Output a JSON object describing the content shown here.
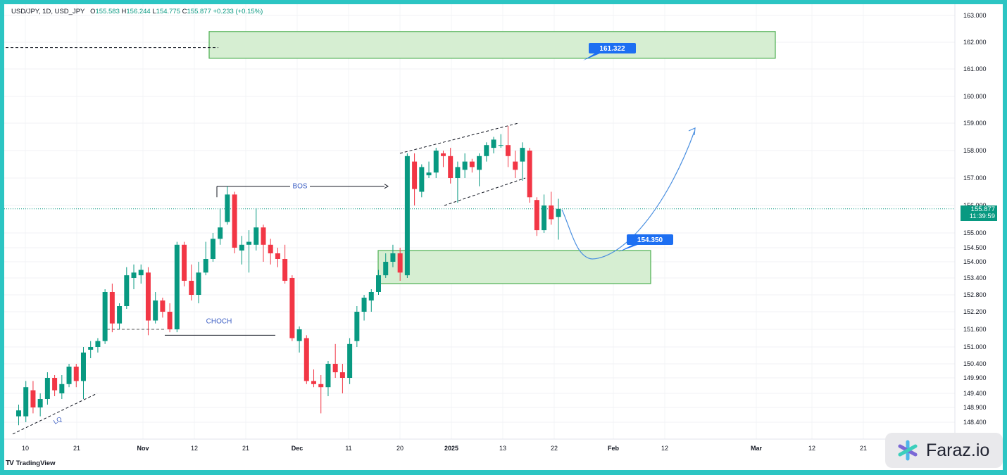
{
  "header": {
    "symbol": "USD/JPY, 1D, USD_JPY",
    "open_label": "O",
    "open": "155.583",
    "high_label": "H",
    "high": "156.244",
    "low_label": "L",
    "low": "154.775",
    "close_label": "C",
    "close": "155.877",
    "change": "+0.233 (+0.15%)"
  },
  "brand": {
    "logo": "TV",
    "name": "TradingView",
    "watermark": "Faraz.io"
  },
  "price_tag": {
    "price": "155.877",
    "countdown": "11:39:59"
  },
  "colors": {
    "up": "#089981",
    "down": "#f23645",
    "zone_fill": "#d6eed2",
    "zone_stroke": "#4caf50",
    "label_bg": "#1d6ff2",
    "projection": "#4a8fe0",
    "frame": "#2cc5c3"
  },
  "annotations": {
    "bos": "BOS",
    "choch": "CHOCH",
    "lq": "LQ",
    "target_label": "161.322",
    "entry_label": "154.350"
  },
  "chart_data": {
    "type": "candlestick",
    "title": "USD/JPY, 1D, USD_JPY",
    "x_tick_labels": [
      "10",
      "21",
      "Nov",
      "12",
      "21",
      "Dec",
      "11",
      "20",
      "2025",
      "13",
      "22",
      "Feb",
      "12",
      "Mar",
      "12",
      "21"
    ],
    "y_tick_labels": [
      "163.000",
      "162.000",
      "161.000",
      "160.000",
      "159.000",
      "158.000",
      "157.000",
      "156.000",
      "155.000",
      "154.500",
      "154.000",
      "153.400",
      "152.800",
      "152.200",
      "151.600",
      "151.000",
      "150.400",
      "149.900",
      "149.400",
      "148.900",
      "148.400"
    ],
    "price_scale": "nonlinear (as labelled on the right axis)",
    "series": [
      {
        "name": "USD/JPY",
        "candles": [
          {
            "o": 148.6,
            "h": 149.0,
            "l": 148.3,
            "c": 148.8
          },
          {
            "o": 148.6,
            "h": 149.8,
            "l": 148.4,
            "c": 149.6
          },
          {
            "o": 149.5,
            "h": 149.8,
            "l": 148.7,
            "c": 148.9
          },
          {
            "o": 148.9,
            "h": 149.4,
            "l": 148.6,
            "c": 149.2
          },
          {
            "o": 149.2,
            "h": 150.1,
            "l": 149.0,
            "c": 149.9
          },
          {
            "o": 149.9,
            "h": 150.0,
            "l": 149.3,
            "c": 149.5
          },
          {
            "o": 149.4,
            "h": 150.0,
            "l": 149.2,
            "c": 149.7
          },
          {
            "o": 149.7,
            "h": 150.4,
            "l": 149.6,
            "c": 150.3
          },
          {
            "o": 150.3,
            "h": 150.4,
            "l": 149.6,
            "c": 149.8
          },
          {
            "o": 149.8,
            "h": 151.0,
            "l": 149.2,
            "c": 150.8
          },
          {
            "o": 150.9,
            "h": 151.2,
            "l": 150.6,
            "c": 151.0
          },
          {
            "o": 151.0,
            "h": 151.3,
            "l": 150.8,
            "c": 151.2
          },
          {
            "o": 151.2,
            "h": 153.0,
            "l": 151.1,
            "c": 152.9
          },
          {
            "o": 152.9,
            "h": 153.2,
            "l": 151.5,
            "c": 151.8
          },
          {
            "o": 151.8,
            "h": 152.5,
            "l": 151.6,
            "c": 152.4
          },
          {
            "o": 152.4,
            "h": 153.8,
            "l": 152.3,
            "c": 153.5
          },
          {
            "o": 153.4,
            "h": 153.9,
            "l": 153.0,
            "c": 153.6
          },
          {
            "o": 153.5,
            "h": 153.9,
            "l": 153.2,
            "c": 153.7
          },
          {
            "o": 153.6,
            "h": 153.8,
            "l": 151.4,
            "c": 151.9
          },
          {
            "o": 151.9,
            "h": 152.9,
            "l": 151.8,
            "c": 152.6
          },
          {
            "o": 152.6,
            "h": 152.7,
            "l": 152.0,
            "c": 152.2
          },
          {
            "o": 152.2,
            "h": 152.5,
            "l": 151.5,
            "c": 151.6
          },
          {
            "o": 151.6,
            "h": 154.7,
            "l": 151.5,
            "c": 154.6
          },
          {
            "o": 154.6,
            "h": 154.7,
            "l": 153.1,
            "c": 153.3
          },
          {
            "o": 153.3,
            "h": 153.9,
            "l": 152.6,
            "c": 152.8
          },
          {
            "o": 152.8,
            "h": 154.0,
            "l": 152.5,
            "c": 153.6
          },
          {
            "o": 153.6,
            "h": 154.7,
            "l": 153.5,
            "c": 154.1
          },
          {
            "o": 154.1,
            "h": 155.0,
            "l": 154.0,
            "c": 154.8
          },
          {
            "o": 154.8,
            "h": 155.9,
            "l": 154.6,
            "c": 155.2
          },
          {
            "o": 155.4,
            "h": 156.7,
            "l": 155.3,
            "c": 156.4
          },
          {
            "o": 156.4,
            "h": 156.5,
            "l": 154.3,
            "c": 154.5
          },
          {
            "o": 154.4,
            "h": 154.9,
            "l": 153.9,
            "c": 154.6
          },
          {
            "o": 154.6,
            "h": 155.1,
            "l": 153.6,
            "c": 154.7
          },
          {
            "o": 154.6,
            "h": 155.9,
            "l": 154.4,
            "c": 155.2
          },
          {
            "o": 155.2,
            "h": 155.3,
            "l": 154.0,
            "c": 154.6
          },
          {
            "o": 154.6,
            "h": 154.8,
            "l": 153.9,
            "c": 154.3
          },
          {
            "o": 154.3,
            "h": 154.5,
            "l": 153.8,
            "c": 154.1
          },
          {
            "o": 154.1,
            "h": 154.6,
            "l": 153.2,
            "c": 153.3
          },
          {
            "o": 153.4,
            "h": 153.5,
            "l": 151.2,
            "c": 151.3
          },
          {
            "o": 151.2,
            "h": 151.7,
            "l": 150.8,
            "c": 151.6
          },
          {
            "o": 151.3,
            "h": 151.4,
            "l": 149.7,
            "c": 149.8
          },
          {
            "o": 149.8,
            "h": 150.2,
            "l": 149.6,
            "c": 149.7
          },
          {
            "o": 149.7,
            "h": 150.0,
            "l": 148.7,
            "c": 149.6
          },
          {
            "o": 149.6,
            "h": 150.5,
            "l": 149.3,
            "c": 150.4
          },
          {
            "o": 150.4,
            "h": 151.1,
            "l": 149.9,
            "c": 150.1
          },
          {
            "o": 150.1,
            "h": 150.4,
            "l": 149.4,
            "c": 149.9
          },
          {
            "o": 149.9,
            "h": 151.3,
            "l": 149.7,
            "c": 151.1
          },
          {
            "o": 151.2,
            "h": 152.4,
            "l": 151.0,
            "c": 152.2
          },
          {
            "o": 152.2,
            "h": 152.8,
            "l": 151.9,
            "c": 152.7
          },
          {
            "o": 152.6,
            "h": 153.0,
            "l": 152.2,
            "c": 152.9
          },
          {
            "o": 152.9,
            "h": 153.7,
            "l": 152.8,
            "c": 153.5
          },
          {
            "o": 153.5,
            "h": 154.3,
            "l": 153.4,
            "c": 154.0
          },
          {
            "o": 154.0,
            "h": 154.6,
            "l": 153.8,
            "c": 154.3
          },
          {
            "o": 154.3,
            "h": 154.5,
            "l": 153.3,
            "c": 153.6
          },
          {
            "o": 153.5,
            "h": 157.9,
            "l": 153.4,
            "c": 157.8
          },
          {
            "o": 157.6,
            "h": 157.9,
            "l": 156.0,
            "c": 156.6
          },
          {
            "o": 156.5,
            "h": 157.5,
            "l": 156.3,
            "c": 157.4
          },
          {
            "o": 157.1,
            "h": 157.6,
            "l": 157.0,
            "c": 157.2
          },
          {
            "o": 157.2,
            "h": 158.1,
            "l": 157.0,
            "c": 158.0
          },
          {
            "o": 157.9,
            "h": 158.0,
            "l": 157.4,
            "c": 157.8
          },
          {
            "o": 157.8,
            "h": 158.1,
            "l": 156.8,
            "c": 157.0
          },
          {
            "o": 157.0,
            "h": 157.6,
            "l": 156.1,
            "c": 157.4
          },
          {
            "o": 157.3,
            "h": 157.9,
            "l": 157.0,
            "c": 157.6
          },
          {
            "o": 157.6,
            "h": 157.7,
            "l": 157.2,
            "c": 157.4
          },
          {
            "o": 157.3,
            "h": 157.9,
            "l": 156.7,
            "c": 157.8
          },
          {
            "o": 157.8,
            "h": 158.3,
            "l": 157.6,
            "c": 158.2
          },
          {
            "o": 158.1,
            "h": 158.5,
            "l": 157.9,
            "c": 158.4
          },
          {
            "o": 158.2,
            "h": 158.6,
            "l": 158.1,
            "c": 158.2
          },
          {
            "o": 158.2,
            "h": 158.9,
            "l": 157.4,
            "c": 157.8
          },
          {
            "o": 157.6,
            "h": 158.0,
            "l": 157.0,
            "c": 157.3
          },
          {
            "o": 157.6,
            "h": 158.3,
            "l": 156.9,
            "c": 158.1
          },
          {
            "o": 158.0,
            "h": 158.1,
            "l": 156.1,
            "c": 156.3
          },
          {
            "o": 156.2,
            "h": 156.3,
            "l": 154.9,
            "c": 155.1
          },
          {
            "o": 155.1,
            "h": 156.4,
            "l": 155.0,
            "c": 156.0
          },
          {
            "o": 156.0,
            "h": 156.5,
            "l": 155.3,
            "c": 155.5
          },
          {
            "o": 155.583,
            "h": 156.244,
            "l": 154.775,
            "c": 155.877
          }
        ]
      }
    ],
    "zones": [
      {
        "name": "target-zone",
        "from": 161.4,
        "to": 162.4
      },
      {
        "name": "demand-zone",
        "from": 153.2,
        "to": 154.4
      }
    ],
    "levels": {
      "target": 161.322,
      "entry": 154.35,
      "last": 155.877
    },
    "grid": true
  }
}
